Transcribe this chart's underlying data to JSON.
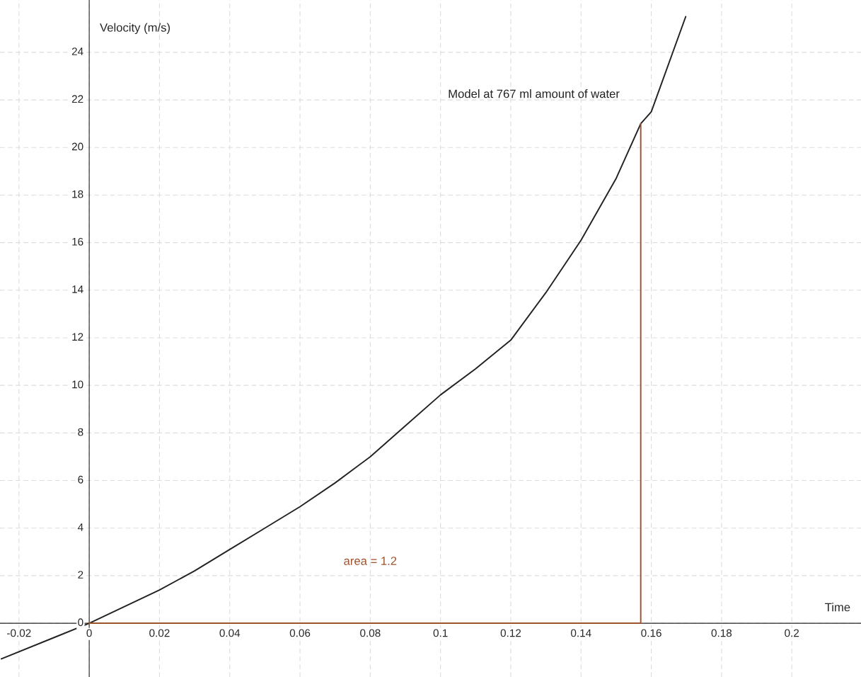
{
  "chart_data": {
    "type": "line",
    "xlabel": "Time",
    "ylabel": "Velocity (m/s)",
    "series": [
      {
        "color": "#222222",
        "x": [
          -0.025,
          -0.01,
          0,
          0.01,
          0.02,
          0.03,
          0.04,
          0.05,
          0.06,
          0.07,
          0.08,
          0.09,
          0.1,
          0.11,
          0.12,
          0.13,
          0.14,
          0.15,
          0.157,
          0.16,
          0.1698
        ],
        "values": [
          -1.5,
          -0.6,
          0,
          0.7,
          1.4,
          2.2,
          3.1,
          4.0,
          4.9,
          5.9,
          7.0,
          8.3,
          9.6,
          10.7,
          11.9,
          13.9,
          16.1,
          18.7,
          21.0,
          21.5,
          25.5
        ]
      },
      {
        "color": "#a0522d",
        "x": [
          0,
          0.157,
          0.157
        ],
        "values": [
          0,
          0,
          21.0
        ]
      }
    ],
    "annotations": [
      "Model at 767 ml amount of water",
      "area = 1.2"
    ],
    "xlim": [
      -0.0254,
      0.2197
    ],
    "ylim": [
      -2.26,
      26.2
    ],
    "xticks": [
      -0.02,
      0,
      0.02,
      0.04,
      0.06,
      0.08,
      0.1,
      0.12,
      0.14,
      0.16,
      0.18,
      0.2
    ],
    "yticks": [
      0,
      2,
      4,
      6,
      8,
      10,
      12,
      14,
      16,
      18,
      20,
      22,
      24
    ],
    "grid": true
  }
}
